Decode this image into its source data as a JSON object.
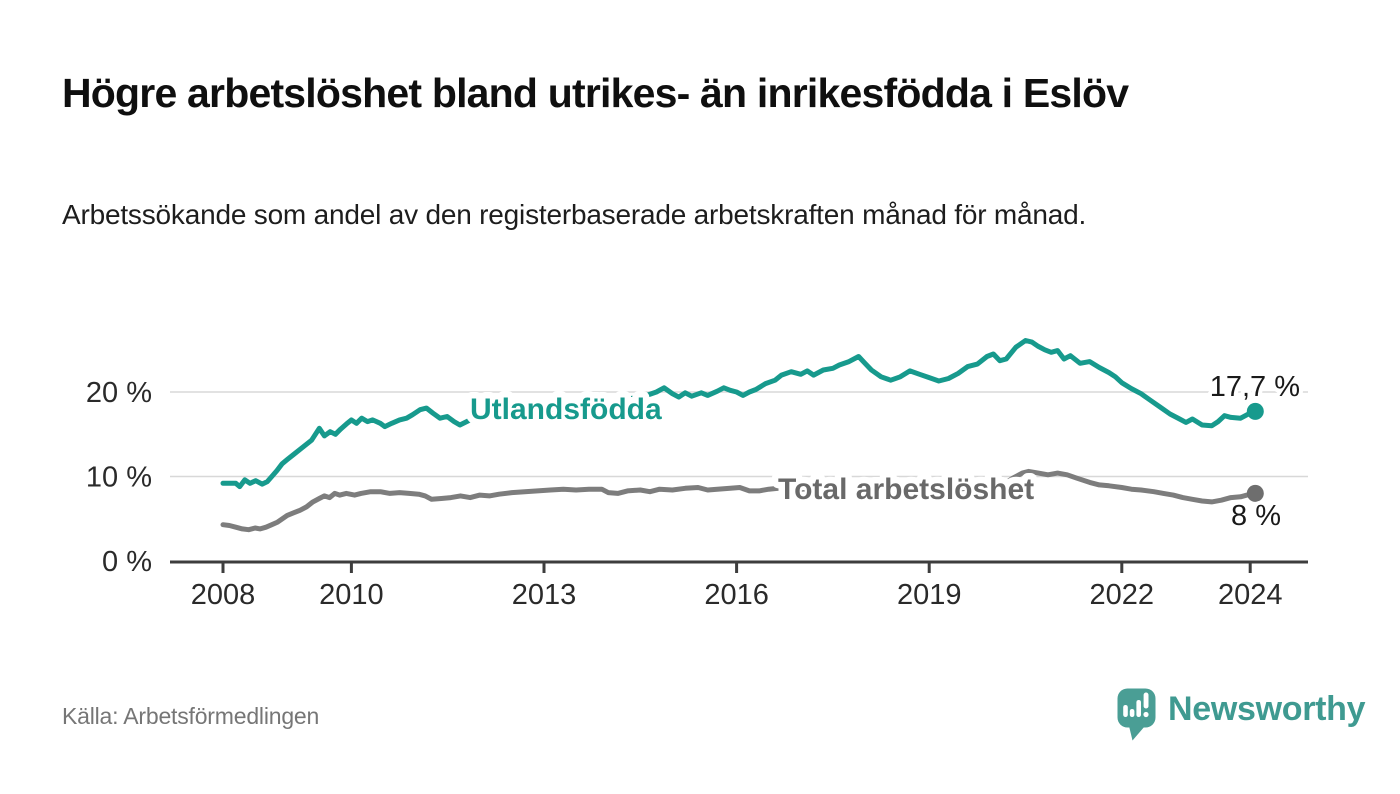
{
  "page": {
    "brand": {
      "name": "Newsworthy",
      "logo_icon": "bar-chart-speech-bubble",
      "color": "#3f9a91"
    }
  },
  "chart_data": {
    "type": "line",
    "title": "Högre arbetslöshet bland utrikes- än inrikesfödda i Eslöv",
    "subtitle": "Arbetssökande som andel av den registerbaserade arbetskraften månad för månad.",
    "source_note": "Källa: Arbetsförmedlingen",
    "unit": "%",
    "grid": "horizontal",
    "x_axis": {
      "tick_labels": [
        "2008",
        "2010",
        "2013",
        "2016",
        "2019",
        "2022",
        "2024"
      ],
      "tick_years": [
        2008,
        2010,
        2013,
        2016,
        2019,
        2022,
        2024
      ],
      "range": [
        2007.2,
        2024.6
      ]
    },
    "y_axis": {
      "tick_labels": [
        "0 %",
        "10 %",
        "20 %"
      ],
      "tick_values": [
        0,
        10,
        20
      ],
      "range": [
        0,
        27
      ]
    },
    "colors": {
      "grid": "#d8d8d8",
      "axis": "#3d3d3d",
      "value_label": "#1a1a1a"
    },
    "series": [
      {
        "name": "Utlandsfödda",
        "color": "#179a8d",
        "end_label": "17,7 %",
        "end_value": 17.7,
        "points": [
          [
            2008.0,
            9.2
          ],
          [
            2008.1,
            9.2
          ],
          [
            2008.2,
            9.2
          ],
          [
            2008.26,
            8.8
          ],
          [
            2008.34,
            9.6
          ],
          [
            2008.42,
            9.2
          ],
          [
            2008.51,
            9.5
          ],
          [
            2008.61,
            9.1
          ],
          [
            2008.69,
            9.4
          ],
          [
            2008.76,
            10.0
          ],
          [
            2008.84,
            10.7
          ],
          [
            2008.92,
            11.5
          ],
          [
            2009.0,
            12.0
          ],
          [
            2009.1,
            12.6
          ],
          [
            2009.23,
            13.4
          ],
          [
            2009.38,
            14.3
          ],
          [
            2009.5,
            15.7
          ],
          [
            2009.58,
            14.8
          ],
          [
            2009.67,
            15.3
          ],
          [
            2009.75,
            15.0
          ],
          [
            2009.83,
            15.6
          ],
          [
            2009.92,
            16.2
          ],
          [
            2010.0,
            16.7
          ],
          [
            2010.08,
            16.3
          ],
          [
            2010.16,
            16.9
          ],
          [
            2010.25,
            16.5
          ],
          [
            2010.33,
            16.7
          ],
          [
            2010.45,
            16.3
          ],
          [
            2010.52,
            15.9
          ],
          [
            2010.63,
            16.3
          ],
          [
            2010.75,
            16.7
          ],
          [
            2010.86,
            16.9
          ],
          [
            2010.95,
            17.3
          ],
          [
            2011.07,
            17.9
          ],
          [
            2011.17,
            18.1
          ],
          [
            2011.27,
            17.5
          ],
          [
            2011.38,
            16.9
          ],
          [
            2011.49,
            17.1
          ],
          [
            2011.6,
            16.5
          ],
          [
            2011.69,
            16.1
          ],
          [
            2011.85,
            16.7
          ],
          [
            2012.0,
            16.9
          ],
          [
            2012.2,
            17.2
          ],
          [
            2012.4,
            17.0
          ],
          [
            2012.6,
            17.5
          ],
          [
            2012.8,
            17.7
          ],
          [
            2013.0,
            17.8
          ],
          [
            2013.2,
            18.1
          ],
          [
            2013.4,
            18.3
          ],
          [
            2013.6,
            18.2
          ],
          [
            2013.8,
            18.5
          ],
          [
            2014.0,
            18.7
          ],
          [
            2014.2,
            19.0
          ],
          [
            2014.4,
            19.3
          ],
          [
            2014.6,
            19.6
          ],
          [
            2014.75,
            20.0
          ],
          [
            2014.87,
            20.5
          ],
          [
            2015.0,
            19.8
          ],
          [
            2015.1,
            19.4
          ],
          [
            2015.2,
            19.9
          ],
          [
            2015.3,
            19.5
          ],
          [
            2015.45,
            19.9
          ],
          [
            2015.55,
            19.6
          ],
          [
            2015.7,
            20.1
          ],
          [
            2015.8,
            20.5
          ],
          [
            2015.9,
            20.2
          ],
          [
            2016.0,
            20.0
          ],
          [
            2016.1,
            19.6
          ],
          [
            2016.2,
            20.0
          ],
          [
            2016.3,
            20.3
          ],
          [
            2016.45,
            21.0
          ],
          [
            2016.6,
            21.4
          ],
          [
            2016.7,
            22.0
          ],
          [
            2016.85,
            22.4
          ],
          [
            2017.0,
            22.1
          ],
          [
            2017.1,
            22.5
          ],
          [
            2017.2,
            22.0
          ],
          [
            2017.35,
            22.6
          ],
          [
            2017.5,
            22.8
          ],
          [
            2017.6,
            23.2
          ],
          [
            2017.75,
            23.6
          ],
          [
            2017.9,
            24.2
          ],
          [
            2018.0,
            23.4
          ],
          [
            2018.1,
            22.6
          ],
          [
            2018.25,
            21.8
          ],
          [
            2018.4,
            21.4
          ],
          [
            2018.55,
            21.8
          ],
          [
            2018.7,
            22.5
          ],
          [
            2018.85,
            22.1
          ],
          [
            2019.0,
            21.7
          ],
          [
            2019.15,
            21.3
          ],
          [
            2019.3,
            21.6
          ],
          [
            2019.45,
            22.2
          ],
          [
            2019.6,
            23.0
          ],
          [
            2019.75,
            23.3
          ],
          [
            2019.9,
            24.2
          ],
          [
            2020.0,
            24.5
          ],
          [
            2020.1,
            23.7
          ],
          [
            2020.2,
            23.9
          ],
          [
            2020.35,
            25.3
          ],
          [
            2020.5,
            26.1
          ],
          [
            2020.6,
            25.9
          ],
          [
            2020.7,
            25.4
          ],
          [
            2020.8,
            25.0
          ],
          [
            2020.9,
            24.7
          ],
          [
            2021.0,
            24.9
          ],
          [
            2021.1,
            23.9
          ],
          [
            2021.2,
            24.3
          ],
          [
            2021.35,
            23.4
          ],
          [
            2021.5,
            23.6
          ],
          [
            2021.65,
            22.9
          ],
          [
            2021.8,
            22.3
          ],
          [
            2021.9,
            21.8
          ],
          [
            2022.0,
            21.1
          ],
          [
            2022.15,
            20.4
          ],
          [
            2022.3,
            19.8
          ],
          [
            2022.45,
            19.0
          ],
          [
            2022.6,
            18.2
          ],
          [
            2022.75,
            17.4
          ],
          [
            2022.9,
            16.8
          ],
          [
            2023.0,
            16.4
          ],
          [
            2023.1,
            16.8
          ],
          [
            2023.25,
            16.1
          ],
          [
            2023.4,
            16.0
          ],
          [
            2023.5,
            16.5
          ],
          [
            2023.6,
            17.2
          ],
          [
            2023.7,
            17.0
          ],
          [
            2023.85,
            16.9
          ],
          [
            2024.0,
            17.5
          ],
          [
            2024.08,
            17.7
          ]
        ]
      },
      {
        "name": "Total arbetslöshet",
        "color": "#7d7d7d",
        "dot_color": "#6e6e6e",
        "end_label": "8 %",
        "end_value": 8.0,
        "points": [
          [
            2008.0,
            4.3
          ],
          [
            2008.1,
            4.2
          ],
          [
            2008.2,
            4.0
          ],
          [
            2008.3,
            3.8
          ],
          [
            2008.4,
            3.7
          ],
          [
            2008.5,
            3.9
          ],
          [
            2008.58,
            3.8
          ],
          [
            2008.67,
            4.0
          ],
          [
            2008.76,
            4.3
          ],
          [
            2008.85,
            4.6
          ],
          [
            2009.0,
            5.4
          ],
          [
            2009.1,
            5.7
          ],
          [
            2009.2,
            6.0
          ],
          [
            2009.3,
            6.4
          ],
          [
            2009.4,
            7.0
          ],
          [
            2009.5,
            7.4
          ],
          [
            2009.58,
            7.7
          ],
          [
            2009.66,
            7.5
          ],
          [
            2009.74,
            8.0
          ],
          [
            2009.82,
            7.8
          ],
          [
            2009.92,
            8.0
          ],
          [
            2010.05,
            7.8
          ],
          [
            2010.15,
            8.0
          ],
          [
            2010.3,
            8.2
          ],
          [
            2010.45,
            8.2
          ],
          [
            2010.6,
            8.0
          ],
          [
            2010.75,
            8.1
          ],
          [
            2010.9,
            8.0
          ],
          [
            2011.05,
            7.9
          ],
          [
            2011.15,
            7.7
          ],
          [
            2011.25,
            7.3
          ],
          [
            2011.4,
            7.4
          ],
          [
            2011.55,
            7.5
          ],
          [
            2011.7,
            7.7
          ],
          [
            2011.85,
            7.5
          ],
          [
            2012.0,
            7.8
          ],
          [
            2012.15,
            7.7
          ],
          [
            2012.3,
            7.9
          ],
          [
            2012.5,
            8.1
          ],
          [
            2012.7,
            8.2
          ],
          [
            2012.9,
            8.3
          ],
          [
            2013.1,
            8.4
          ],
          [
            2013.3,
            8.5
          ],
          [
            2013.5,
            8.4
          ],
          [
            2013.7,
            8.5
          ],
          [
            2013.9,
            8.5
          ],
          [
            2014.0,
            8.1
          ],
          [
            2014.15,
            8.0
          ],
          [
            2014.3,
            8.3
          ],
          [
            2014.5,
            8.4
          ],
          [
            2014.65,
            8.2
          ],
          [
            2014.8,
            8.5
          ],
          [
            2015.0,
            8.4
          ],
          [
            2015.2,
            8.6
          ],
          [
            2015.4,
            8.7
          ],
          [
            2015.55,
            8.4
          ],
          [
            2015.7,
            8.5
          ],
          [
            2015.9,
            8.6
          ],
          [
            2016.05,
            8.7
          ],
          [
            2016.2,
            8.3
          ],
          [
            2016.35,
            8.3
          ],
          [
            2016.5,
            8.5
          ],
          [
            2016.65,
            8.6
          ],
          [
            2016.8,
            8.4
          ],
          [
            2017.0,
            8.5
          ],
          [
            2017.2,
            8.6
          ],
          [
            2017.4,
            8.7
          ],
          [
            2017.6,
            8.8
          ],
          [
            2017.8,
            8.6
          ],
          [
            2018.0,
            8.6
          ],
          [
            2018.2,
            8.5
          ],
          [
            2018.4,
            8.3
          ],
          [
            2018.6,
            8.4
          ],
          [
            2018.8,
            8.3
          ],
          [
            2019.0,
            8.5
          ],
          [
            2019.2,
            8.4
          ],
          [
            2019.4,
            8.5
          ],
          [
            2019.6,
            8.6
          ],
          [
            2019.8,
            8.7
          ],
          [
            2020.0,
            8.8
          ],
          [
            2020.15,
            9.0
          ],
          [
            2020.3,
            9.8
          ],
          [
            2020.45,
            10.4
          ],
          [
            2020.55,
            10.6
          ],
          [
            2020.7,
            10.4
          ],
          [
            2020.85,
            10.2
          ],
          [
            2021.0,
            10.4
          ],
          [
            2021.15,
            10.2
          ],
          [
            2021.3,
            9.8
          ],
          [
            2021.5,
            9.3
          ],
          [
            2021.65,
            9.0
          ],
          [
            2021.8,
            8.9
          ],
          [
            2022.0,
            8.7
          ],
          [
            2022.15,
            8.5
          ],
          [
            2022.3,
            8.4
          ],
          [
            2022.5,
            8.2
          ],
          [
            2022.65,
            8.0
          ],
          [
            2022.8,
            7.8
          ],
          [
            2022.95,
            7.5
          ],
          [
            2023.1,
            7.3
          ],
          [
            2023.25,
            7.1
          ],
          [
            2023.4,
            7.0
          ],
          [
            2023.55,
            7.2
          ],
          [
            2023.7,
            7.5
          ],
          [
            2023.85,
            7.6
          ],
          [
            2024.0,
            7.9
          ],
          [
            2024.08,
            8.0
          ]
        ]
      }
    ]
  }
}
